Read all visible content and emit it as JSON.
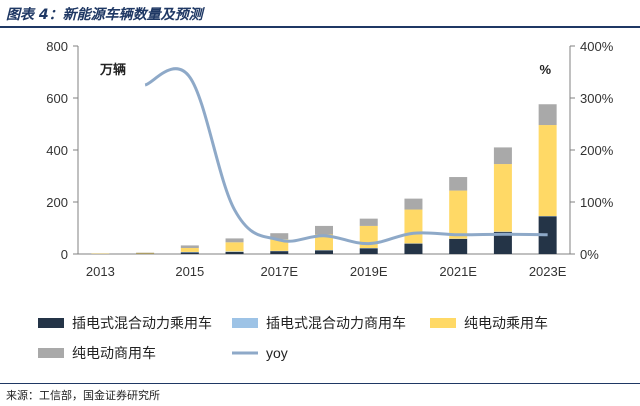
{
  "header": {
    "title": "图表 4：新能源车辆数量及预测"
  },
  "footer": {
    "source": "来源：工信部，国金证券研究所"
  },
  "chart_data": {
    "type": "bar",
    "stacked": true,
    "title": "图表 4：新能源车辆数量及预测",
    "categories": [
      "2013",
      "2014",
      "2015",
      "2016",
      "2017E",
      "2018E",
      "2019E",
      "2020E",
      "2021E",
      "2022E",
      "2023E"
    ],
    "x_tick_labels": [
      "2013",
      "2015",
      "2017E",
      "2019E",
      "2021E",
      "2023E"
    ],
    "y_left": {
      "unit_label": "万辆",
      "ylim": [
        0,
        800
      ],
      "ticks": [
        0,
        200,
        400,
        600,
        800
      ]
    },
    "y_right": {
      "unit_label": "%",
      "ylim": [
        0,
        400
      ],
      "ticks": [
        "0%",
        "100%",
        "200%",
        "300%",
        "400%"
      ],
      "tick_values": [
        0,
        100,
        200,
        300,
        400
      ]
    },
    "series": [
      {
        "name": "插电式混合动力乘用车",
        "color": "#243447",
        "axis": "left",
        "values": [
          0.3,
          1.5,
          6,
          8,
          11,
          14,
          22,
          40,
          58,
          85,
          145
        ]
      },
      {
        "name": "插电式混合动力商用车",
        "color": "#9dc3e6",
        "axis": "left",
        "values": [
          0.1,
          0.2,
          2,
          2,
          1,
          1,
          1,
          1,
          1,
          1,
          1
        ]
      },
      {
        "name": "纯电动乘用车",
        "color": "#ffd966",
        "axis": "left",
        "values": [
          1.5,
          3,
          15,
          35,
          45,
          60,
          85,
          130,
          185,
          260,
          350
        ]
      },
      {
        "name": "纯电动商用车",
        "color": "#a9a9a9",
        "axis": "left",
        "values": [
          0.5,
          1,
          10,
          15,
          23,
          33,
          28,
          42,
          52,
          64,
          80
        ]
      },
      {
        "name": "yoy",
        "color": "#8ea9c8",
        "type": "line",
        "axis": "right",
        "values": [
          null,
          325,
          340,
          85,
          27,
          35,
          20,
          40,
          37,
          38,
          37
        ]
      }
    ],
    "legend_position": "bottom",
    "grid": false
  }
}
